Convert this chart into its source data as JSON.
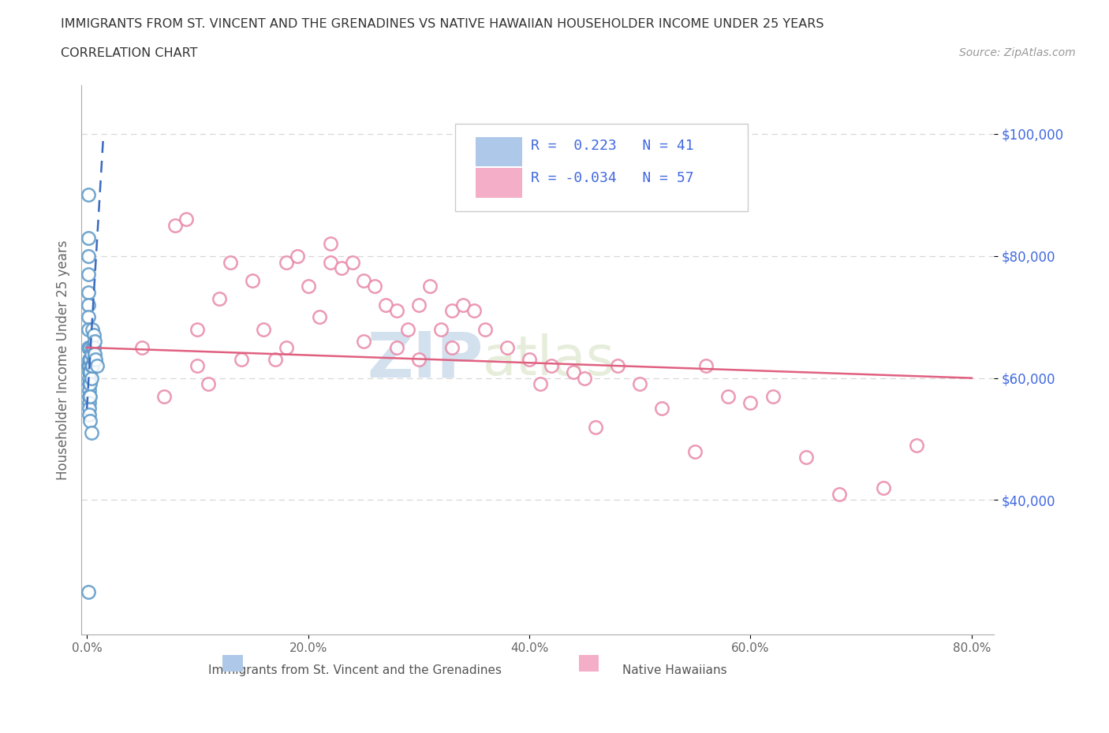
{
  "title_line1": "IMMIGRANTS FROM ST. VINCENT AND THE GRENADINES VS NATIVE HAWAIIAN HOUSEHOLDER INCOME UNDER 25 YEARS",
  "title_line2": "CORRELATION CHART",
  "source_text": "Source: ZipAtlas.com",
  "ylabel": "Householder Income Under 25 years",
  "watermark_zip": "ZIP",
  "watermark_atlas": "atlas",
  "xlim": [
    -0.005,
    0.82
  ],
  "ylim": [
    18000,
    108000
  ],
  "yticks": [
    40000,
    60000,
    80000,
    100000
  ],
  "ytick_labels": [
    "$40,000",
    "$60,000",
    "$80,000",
    "$100,000"
  ],
  "xticks": [
    0.0,
    0.2,
    0.4,
    0.6,
    0.8
  ],
  "xtick_labels": [
    "0.0%",
    "20.0%",
    "40.0%",
    "60.0%",
    "80.0%"
  ],
  "blue_color": "#7ab8e8",
  "pink_color": "#f4a0c0",
  "blue_edge_color": "#5a98c8",
  "pink_edge_color": "#e888a8",
  "blue_line_color": "#3a6abf",
  "pink_line_color": "#e06080",
  "grid_color": "#d8d8d8",
  "background_color": "#ffffff",
  "blue_scatter_x": [
    0.001,
    0.001,
    0.001,
    0.001,
    0.001,
    0.001,
    0.001,
    0.001,
    0.001,
    0.001,
    0.002,
    0.002,
    0.002,
    0.002,
    0.002,
    0.002,
    0.002,
    0.002,
    0.002,
    0.003,
    0.003,
    0.003,
    0.003,
    0.003,
    0.004,
    0.004,
    0.004,
    0.005,
    0.005,
    0.005,
    0.006,
    0.006,
    0.006,
    0.007,
    0.007,
    0.008,
    0.009,
    0.002,
    0.003,
    0.004,
    0.001
  ],
  "blue_scatter_y": [
    90000,
    83000,
    80000,
    77000,
    74000,
    72000,
    70000,
    68000,
    65000,
    62000,
    63000,
    62000,
    61000,
    60000,
    59000,
    58000,
    57000,
    56000,
    55000,
    65000,
    63000,
    61000,
    59000,
    57000,
    64000,
    62000,
    60000,
    68000,
    65000,
    62000,
    67000,
    65000,
    63000,
    66000,
    64000,
    63000,
    62000,
    54000,
    53000,
    51000,
    25000
  ],
  "pink_scatter_x": [
    0.05,
    0.07,
    0.08,
    0.09,
    0.1,
    0.1,
    0.11,
    0.12,
    0.13,
    0.14,
    0.15,
    0.16,
    0.17,
    0.18,
    0.18,
    0.19,
    0.2,
    0.21,
    0.22,
    0.22,
    0.23,
    0.24,
    0.25,
    0.25,
    0.26,
    0.27,
    0.28,
    0.28,
    0.29,
    0.3,
    0.3,
    0.31,
    0.32,
    0.33,
    0.33,
    0.34,
    0.35,
    0.36,
    0.38,
    0.4,
    0.41,
    0.42,
    0.44,
    0.45,
    0.46,
    0.48,
    0.5,
    0.52,
    0.55,
    0.56,
    0.58,
    0.6,
    0.62,
    0.65,
    0.68,
    0.72,
    0.75
  ],
  "pink_scatter_y": [
    65000,
    57000,
    85000,
    86000,
    68000,
    62000,
    59000,
    73000,
    79000,
    63000,
    76000,
    68000,
    63000,
    65000,
    79000,
    80000,
    75000,
    70000,
    79000,
    82000,
    78000,
    79000,
    76000,
    66000,
    75000,
    72000,
    71000,
    65000,
    68000,
    72000,
    63000,
    75000,
    68000,
    71000,
    65000,
    72000,
    71000,
    68000,
    65000,
    63000,
    59000,
    62000,
    61000,
    60000,
    52000,
    62000,
    59000,
    55000,
    48000,
    62000,
    57000,
    56000,
    57000,
    47000,
    41000,
    42000,
    49000
  ],
  "blue_trend_x0": 0.0,
  "blue_trend_x1": 0.015,
  "blue_trend_y0": 55000,
  "blue_trend_y1": 100000,
  "pink_trend_x0": 0.0,
  "pink_trend_x1": 0.8,
  "pink_trend_y0": 65000,
  "pink_trend_y1": 60000
}
